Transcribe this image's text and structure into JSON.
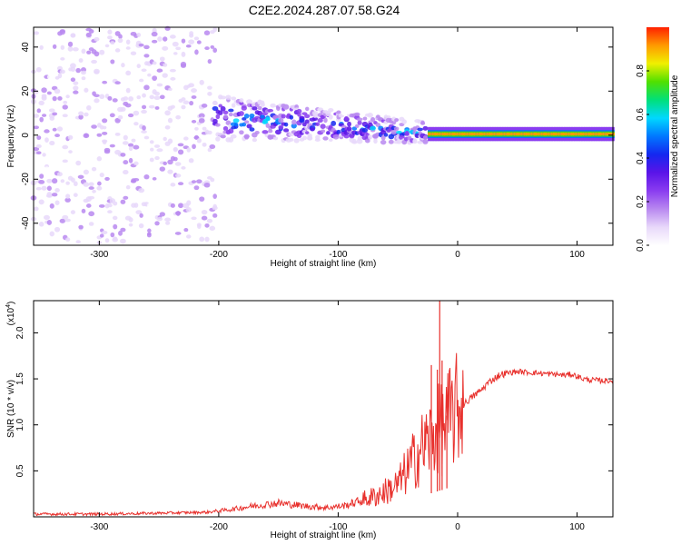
{
  "title": "C2E2.2024.287.07.58.G24",
  "colors": {
    "snr_line": "#e8302c",
    "axis": "#000000",
    "colormap": [
      "#ffffff",
      "#e8d8fa",
      "#b888f0",
      "#8a3cf0",
      "#5a14e8",
      "#1428f0",
      "#0078ff",
      "#00d8ff",
      "#00e07a",
      "#50e000",
      "#f0f000",
      "#ff9a00",
      "#ff2000"
    ]
  },
  "chart_data": [
    {
      "type": "heatmap",
      "title": "C2E2.2024.287.07.58.G24",
      "xlabel": "Height of straight line (km)",
      "ylabel": "Frequency (Hz)",
      "xlim": [
        -355,
        130
      ],
      "ylim": [
        -50,
        49
      ],
      "xticks": [
        -300,
        -200,
        -100,
        0,
        100
      ],
      "yticks": [
        -40,
        -20,
        0,
        20,
        40
      ],
      "colorbar": {
        "label": "Normalized spectral amplitude",
        "range": [
          0,
          1
        ],
        "ticks": [
          "0.0",
          "0.2",
          "0.4",
          "0.6",
          "0.8"
        ],
        "tick_values": [
          0.0,
          0.2,
          0.4,
          0.6,
          0.8
        ]
      },
      "regions": [
        {
          "x": [
            -355,
            -203
          ],
          "freq_center": 0,
          "freq_halfwidth": 49,
          "intensity": 0.12,
          "character": "noise"
        },
        {
          "x": [
            -203,
            -25
          ],
          "freq_center_start": 8,
          "freq_center_end": 1,
          "freq_halfwidth_start": 10,
          "freq_halfwidth_end": 5,
          "intensity": 0.3,
          "character": "scattered"
        },
        {
          "x": [
            -25,
            130
          ],
          "freq_center": 0.5,
          "freq_halfwidth": 1.5,
          "intensity": 0.95,
          "character": "narrow band"
        }
      ]
    },
    {
      "type": "line",
      "xlabel": "Height of straight line (km)",
      "ylabel": "SNR (10 * v/v)",
      "y_multiplier": "(x10",
      "y_multiplier_exp": "4",
      "y_multiplier_close": ")",
      "xlim": [
        -355,
        130
      ],
      "ylim": [
        0,
        2.35
      ],
      "xticks": [
        -300,
        -200,
        -100,
        0,
        100
      ],
      "yticks": [
        0.5,
        1.0,
        1.5,
        2.0
      ],
      "ytick_labels": [
        "0.5",
        "1.0",
        "1.5",
        "2.0"
      ],
      "series": [
        {
          "x": [
            -355,
            -300,
            -250,
            -210,
            -190,
            -170,
            -150,
            -130,
            -110,
            -95,
            -80,
            -70,
            -60,
            -50,
            -45,
            -40,
            -35,
            -30,
            -25,
            -20,
            -17,
            -15,
            -12,
            -8,
            -5,
            -2,
            2,
            5,
            10,
            15,
            20,
            25,
            30,
            35,
            40,
            50,
            60,
            70,
            80,
            90,
            95,
            100,
            105,
            110,
            120,
            130
          ],
          "y": [
            0.03,
            0.03,
            0.04,
            0.05,
            0.08,
            0.12,
            0.15,
            0.12,
            0.1,
            0.12,
            0.18,
            0.22,
            0.28,
            0.35,
            0.45,
            0.55,
            0.65,
            0.75,
            0.82,
            0.88,
            0.92,
            0.95,
            0.98,
            1.05,
            1.1,
            1.15,
            1.18,
            1.22,
            1.28,
            1.33,
            1.38,
            1.45,
            1.5,
            1.54,
            1.56,
            1.58,
            1.57,
            1.56,
            1.55,
            1.54,
            1.55,
            1.53,
            1.5,
            1.49,
            1.48,
            1.48
          ]
        }
      ],
      "spikes": [
        {
          "x": -22,
          "y": 1.65
        },
        {
          "x": -17,
          "y": 1.6
        },
        {
          "x": -15,
          "y": 2.35
        },
        {
          "x": -13,
          "y": 1.7
        },
        {
          "x": -9,
          "y": 1.1
        }
      ]
    }
  ]
}
